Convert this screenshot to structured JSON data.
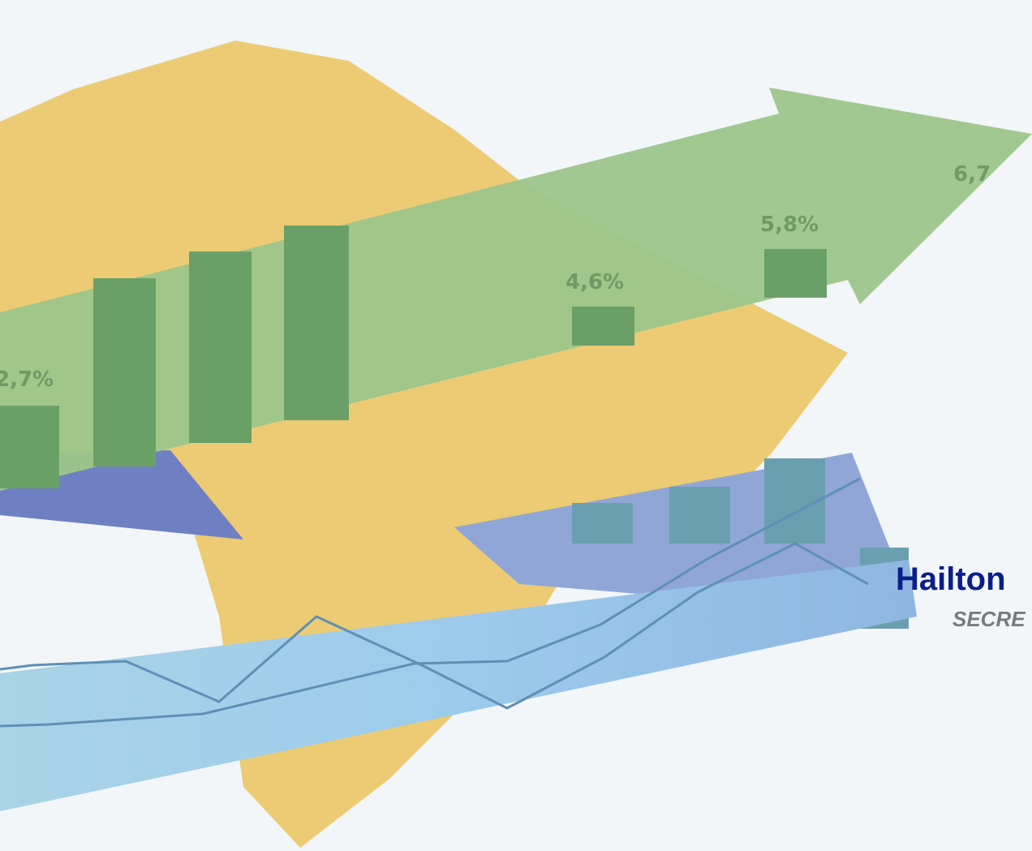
{
  "labels": [
    "2,7%",
    "4,6%",
    "5,8%",
    "6,7"
  ],
  "name": "Hailton",
  "role": "SECRE"
}
